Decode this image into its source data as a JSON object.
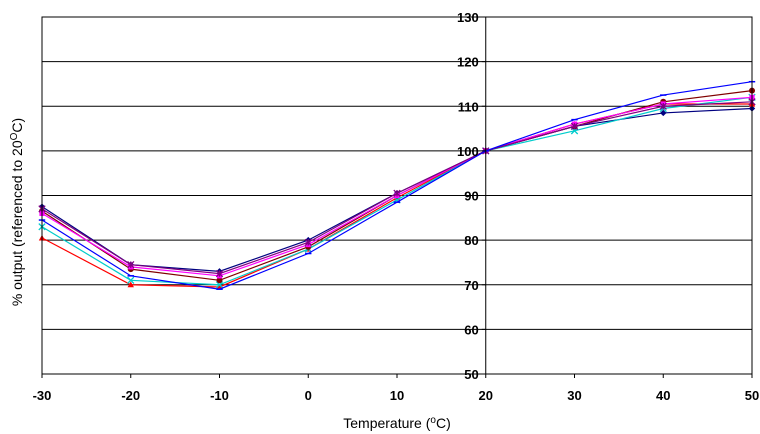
{
  "chart_data": {
    "type": "line",
    "title": "",
    "xlabel": "Temperature (oC)",
    "ylabel": "% output (referenced to 20OC)",
    "xlabel_parts": {
      "pre": "Temperature (",
      "sup": "o",
      "post": "C)"
    },
    "ylabel_parts": {
      "pre": "% output (referenced to 20",
      "sup": "O",
      "post": "C)"
    },
    "x": [
      -30,
      -20,
      -10,
      0,
      10,
      20,
      30,
      40,
      50
    ],
    "xlim": [
      -30,
      50
    ],
    "ylim": [
      50,
      130
    ],
    "x_ticks": [
      "-30",
      "-20",
      "-10",
      "0",
      "10",
      "20",
      "30",
      "40",
      "50"
    ],
    "y_ticks": [
      "50",
      "60",
      "70",
      "80",
      "90",
      "100",
      "110",
      "120",
      "130"
    ],
    "grid": "horizontal",
    "legend": "none",
    "series": [
      {
        "color": "#000080",
        "marker": "diamond",
        "values": [
          87.5,
          74.5,
          73,
          80,
          90.5,
          100,
          105.5,
          108.5,
          109.5
        ]
      },
      {
        "color": "#ff0000",
        "marker": "triangle",
        "values": [
          80.5,
          70,
          69.5,
          78,
          89.5,
          100,
          106,
          110.5,
          110.5
        ]
      },
      {
        "color": "#00cccc",
        "marker": "x",
        "values": [
          83,
          71,
          70,
          78,
          89,
          100,
          104.5,
          109.5,
          112
        ]
      },
      {
        "color": "#800000",
        "marker": "circle",
        "values": [
          86.5,
          73.5,
          71,
          78.5,
          90,
          100,
          105.5,
          111,
          113.5
        ]
      },
      {
        "color": "#ff00ff",
        "marker": "square",
        "values": [
          86,
          74,
          72,
          79,
          90,
          100,
          106,
          110.5,
          112
        ]
      },
      {
        "color": "#800080",
        "marker": "star",
        "values": [
          87,
          74.5,
          72.5,
          79.5,
          90.5,
          100,
          105.5,
          110,
          111
        ]
      },
      {
        "color": "#0000ff",
        "marker": "dash",
        "values": [
          84.5,
          72,
          69,
          77,
          88.5,
          100,
          107,
          112.5,
          115.5
        ]
      }
    ]
  }
}
